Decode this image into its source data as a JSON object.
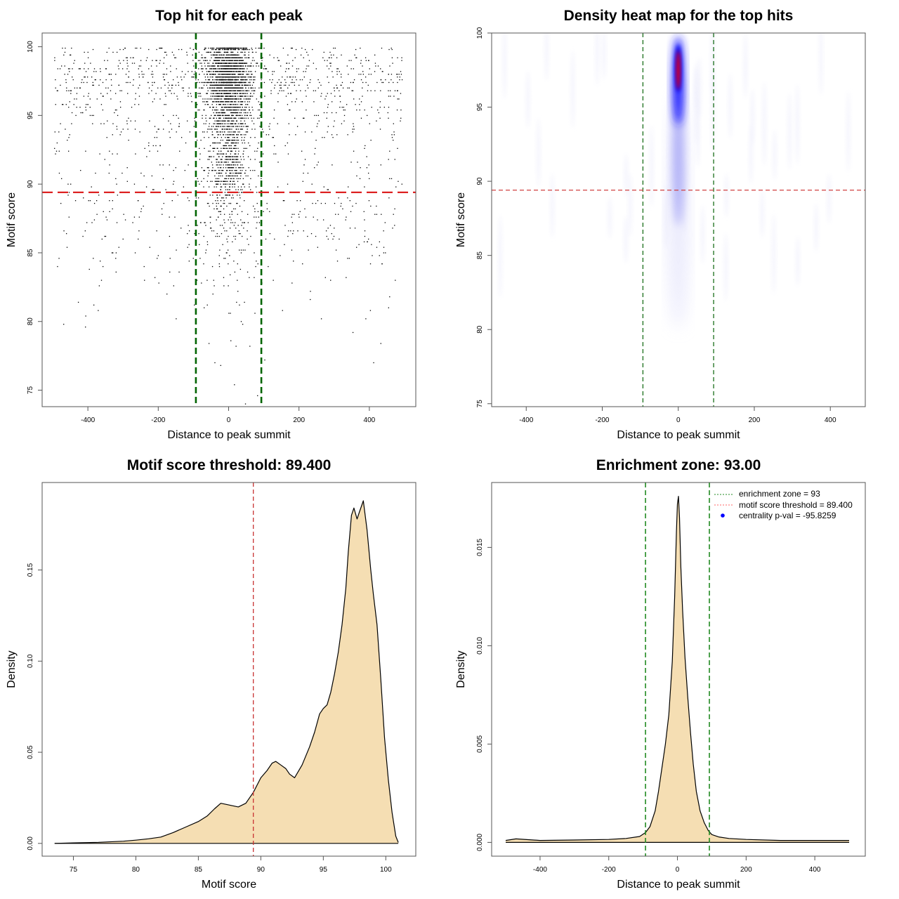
{
  "chart_data": [
    {
      "type": "scatter",
      "title": "Top hit for each peak",
      "xlabel": "Distance to peak summit",
      "ylabel": "Motif score",
      "xlim": [
        -530,
        532
      ],
      "ylim": [
        73.8,
        101.0
      ],
      "xticks": [
        "-400",
        "-200",
        "0",
        "200",
        "400"
      ],
      "xtick_values": [
        -400,
        -200,
        0,
        200,
        400
      ],
      "yticks": [
        "75",
        "80",
        "85",
        "90",
        "95",
        "100"
      ],
      "ytick_values": [
        75,
        80,
        85,
        90,
        95,
        100
      ],
      "approx_point_count": 4000,
      "point_distribution": "dense near distance 0 with scores 89-100, sparse uniform background across -500..500",
      "enrichment_zone": [
        -93,
        93
      ],
      "score_threshold": 89.4,
      "colors": {
        "points": "#000000",
        "zone": "#006400",
        "threshold": "#dd2222"
      }
    },
    {
      "type": "heatmap",
      "title": "Density heat map for the top hits",
      "xlabel": "Distance to peak summit",
      "ylabel": "Motif score",
      "xlim": [
        -491,
        492
      ],
      "ylim": [
        74.8,
        100
      ],
      "xticks": [
        "-400",
        "-200",
        "0",
        "200",
        "400"
      ],
      "xtick_values": [
        -400,
        -200,
        0,
        200,
        400
      ],
      "yticks": [
        "75",
        "80",
        "85",
        "90",
        "95",
        "100"
      ],
      "ytick_values": [
        75,
        80,
        85,
        90,
        95,
        100
      ],
      "hotspot": {
        "x": 0,
        "y": 97.5
      },
      "enrichment_zone": [
        -93,
        93
      ],
      "score_threshold": 89.4,
      "colors": {
        "low": "#ffffff",
        "mid": "#0000ff",
        "high": "#ff0000",
        "zone": "#1a6e1a",
        "threshold": "#d04040"
      }
    },
    {
      "type": "area",
      "title": "Motif score threshold: 89.400",
      "xlabel": "Motif score",
      "ylabel": "Density",
      "xlim": [
        72.5,
        102.4
      ],
      "ylim": [
        -0.007,
        0.198
      ],
      "xticks": [
        "75",
        "80",
        "85",
        "90",
        "95",
        "100"
      ],
      "xtick_values": [
        75,
        80,
        85,
        90,
        95,
        100
      ],
      "yticks": [
        "0.00",
        "0.05",
        "0.10",
        "0.15"
      ],
      "ytick_values": [
        0,
        0.05,
        0.1,
        0.15
      ],
      "x": [
        73.5,
        75,
        77,
        79,
        80,
        81,
        82,
        83,
        84,
        85,
        85.7,
        86.3,
        86.8,
        87.5,
        88.2,
        88.8,
        89.4,
        90,
        90.5,
        90.9,
        91.2,
        91.6,
        92,
        92.3,
        92.7,
        93.3,
        93.9,
        94.3,
        94.7,
        95,
        95.3,
        95.6,
        95.9,
        96.2,
        96.5,
        96.8,
        97.0,
        97.25,
        97.45,
        97.7,
        97.9,
        98.2,
        98.5,
        98.8,
        99.0,
        99.3,
        99.6,
        99.9,
        100.2,
        100.5,
        100.8,
        101.0
      ],
      "y": [
        0,
        0.0003,
        0.0006,
        0.0012,
        0.0018,
        0.0025,
        0.0035,
        0.006,
        0.009,
        0.012,
        0.015,
        0.019,
        0.022,
        0.021,
        0.02,
        0.022,
        0.028,
        0.036,
        0.04,
        0.044,
        0.045,
        0.043,
        0.041,
        0.038,
        0.036,
        0.043,
        0.053,
        0.061,
        0.071,
        0.074,
        0.076,
        0.083,
        0.093,
        0.105,
        0.12,
        0.14,
        0.16,
        0.18,
        0.184,
        0.178,
        0.182,
        0.188,
        0.172,
        0.15,
        0.137,
        0.12,
        0.09,
        0.058,
        0.035,
        0.017,
        0.004,
        0.0005
      ],
      "score_threshold": 89.4,
      "colors": {
        "fill": "#f5deb3",
        "line": "#000000",
        "threshold": "#c83232"
      }
    },
    {
      "type": "area",
      "title": "Enrichment zone: 93.00",
      "xlabel": "Distance to peak summit",
      "ylabel": "Density",
      "xlim": [
        -541,
        547
      ],
      "ylim": [
        -0.0007,
        0.0183
      ],
      "xticks": [
        "-400",
        "-200",
        "0",
        "200",
        "400"
      ],
      "xtick_values": [
        -400,
        -200,
        0,
        200,
        400
      ],
      "yticks": [
        "0.000",
        "0.005",
        "0.010",
        "0.015"
      ],
      "ytick_values": [
        0,
        0.005,
        0.01,
        0.015
      ],
      "x": [
        -500,
        -470,
        -400,
        -300,
        -200,
        -150,
        -110,
        -93,
        -80,
        -65,
        -55,
        -45,
        -35,
        -25,
        -15,
        -8,
        -3,
        0,
        3,
        6,
        10,
        15,
        22,
        30,
        38,
        46,
        55,
        66,
        78,
        90,
        100,
        120,
        150,
        200,
        300,
        400,
        500
      ],
      "y": [
        0.0001,
        0.00018,
        0.0001,
        0.00012,
        0.00015,
        0.0002,
        0.0003,
        0.0005,
        0.0008,
        0.0016,
        0.0026,
        0.0038,
        0.005,
        0.0065,
        0.0092,
        0.0125,
        0.0158,
        0.0172,
        0.0176,
        0.0165,
        0.014,
        0.0118,
        0.0094,
        0.0074,
        0.0056,
        0.004,
        0.0026,
        0.0016,
        0.001,
        0.0006,
        0.0004,
        0.00028,
        0.0002,
        0.00015,
        0.0001,
        0.0001,
        0.0001
      ],
      "enrichment_zone": [
        -93,
        93
      ],
      "legend": {
        "position": "top-right",
        "entries": [
          {
            "label": "enrichment zone = 93",
            "type": "dotted-line",
            "color": "#228b22"
          },
          {
            "label": "motif score threshold = 89.400",
            "type": "dotted-line",
            "color": "#ff6666"
          },
          {
            "label": "centrality p-val = -95.8259",
            "type": "point",
            "color": "#0000ff"
          }
        ]
      },
      "colors": {
        "fill": "#f5deb3",
        "line": "#000000",
        "zone": "#228b22"
      }
    }
  ]
}
